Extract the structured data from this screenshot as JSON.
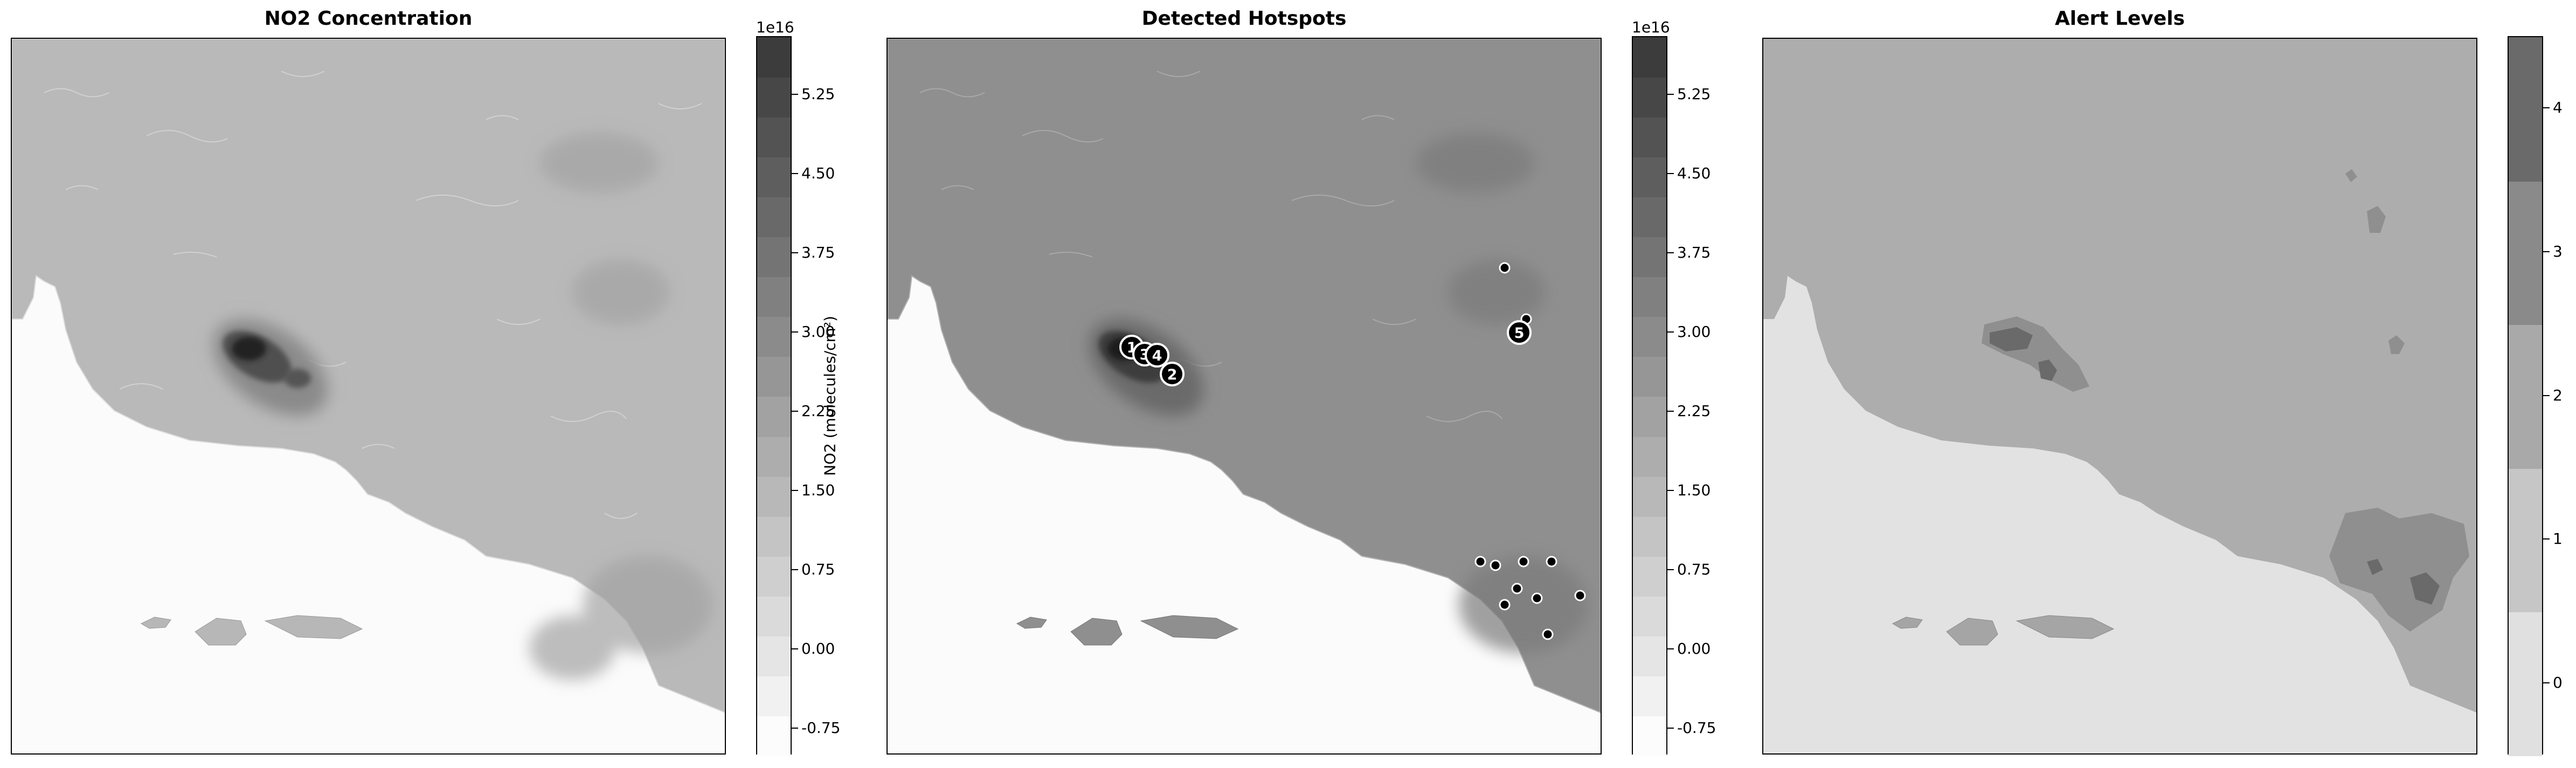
{
  "chart_data": [
    {
      "type": "heatmap",
      "title": "NO2 Concentration",
      "colorbar": {
        "label": "NO2 (molecules/cm²)",
        "exponent": "1e16",
        "ticks": [
          "-0.75",
          "0.00",
          "0.75",
          "1.50",
          "2.25",
          "3.00",
          "3.75",
          "4.50",
          "5.25"
        ],
        "range": [
          -1.0,
          5.8
        ],
        "colormap": "greys"
      },
      "features": {
        "main_plume_peak": 5.6,
        "background_land": 2.0,
        "ocean": 0.0
      }
    },
    {
      "type": "heatmap",
      "title": "Detected Hotspots",
      "colorbar": {
        "exponent": "1e16",
        "ticks": [
          "-0.75",
          "0.00",
          "0.75",
          "1.50",
          "2.25",
          "3.00",
          "3.75",
          "4.50",
          "5.25"
        ],
        "range": [
          -1.0,
          5.8
        ],
        "colormap": "greys"
      },
      "ranked_hotspots": [
        {
          "rank": "1"
        },
        {
          "rank": "3"
        },
        {
          "rank": "4"
        },
        {
          "rank": "2"
        },
        {
          "rank": "5"
        }
      ],
      "minor_hotspot_count": 11
    },
    {
      "type": "heatmap",
      "title": "Alert Levels",
      "colorbar": {
        "ticks": [
          "0",
          "1",
          "2",
          "3",
          "4"
        ],
        "levels": [
          0,
          1,
          2,
          3,
          4
        ],
        "colormap": "greys"
      }
    }
  ]
}
